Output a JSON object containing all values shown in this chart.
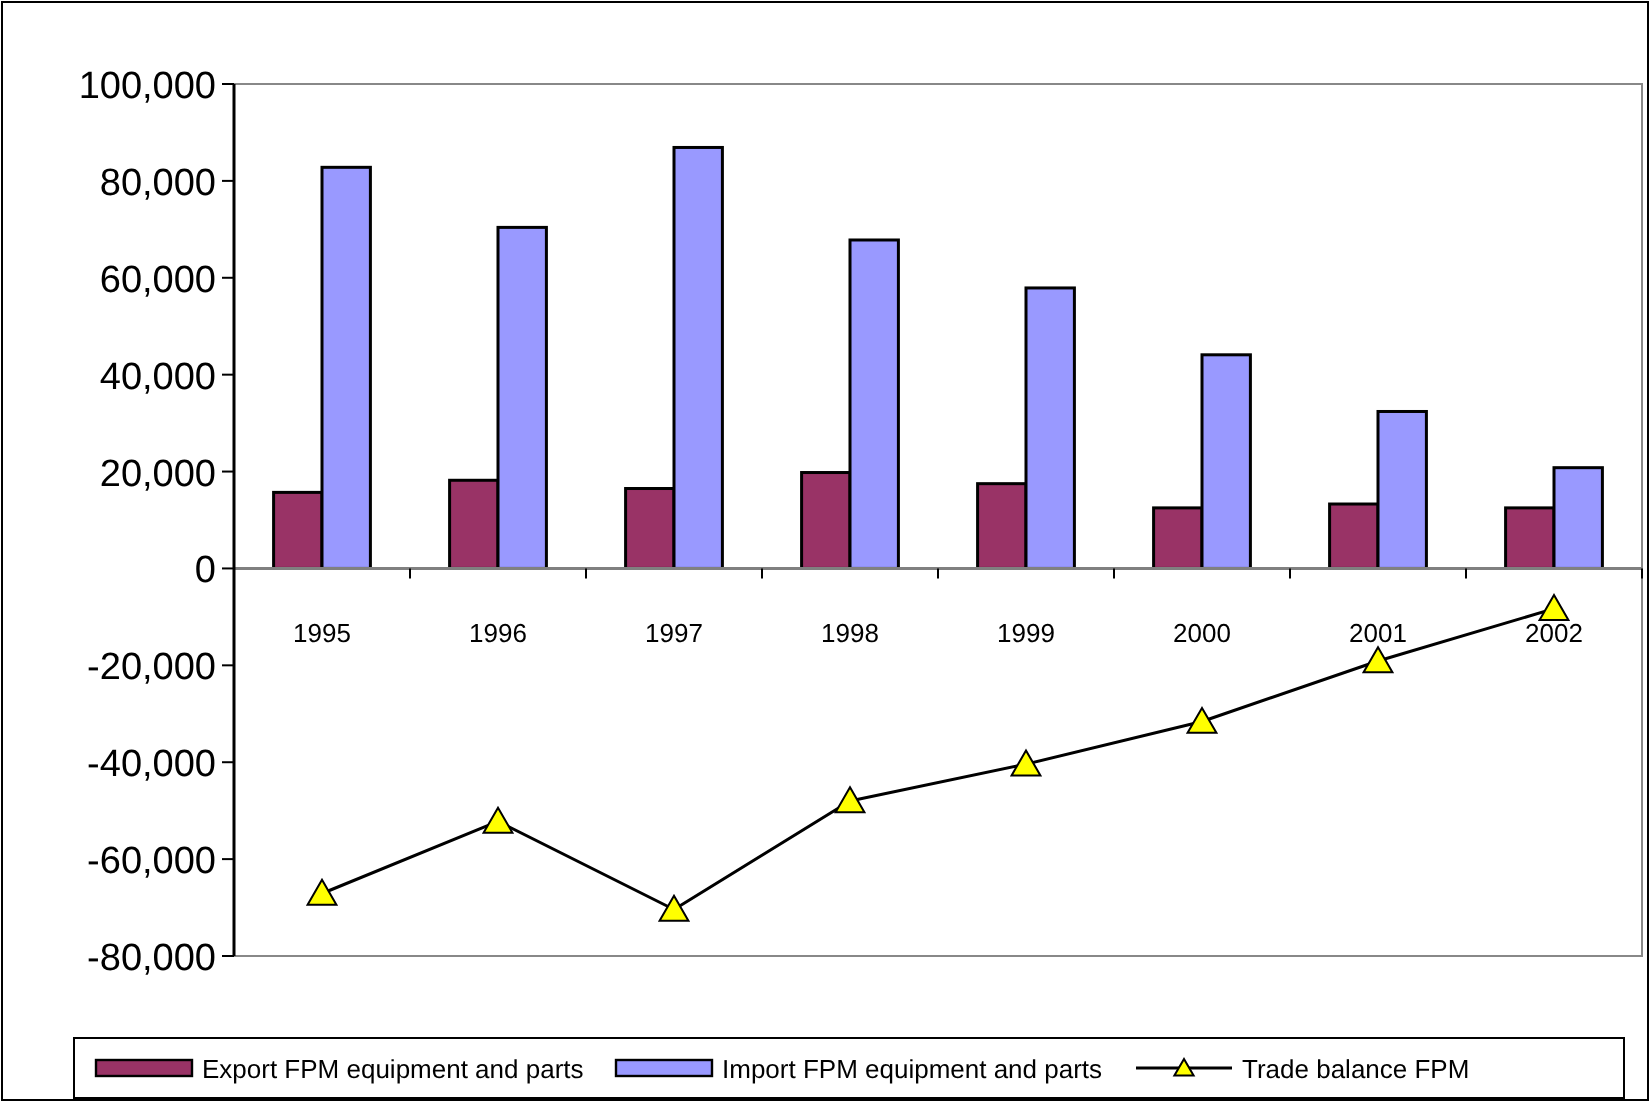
{
  "chart_data": {
    "type": "bar",
    "categories": [
      "1995",
      "1996",
      "1997",
      "1998",
      "1999",
      "2000",
      "2001",
      "2002"
    ],
    "series": [
      {
        "name": "Export FPM equipment and parts",
        "color": "#993366",
        "values": [
          15700,
          18200,
          16500,
          19800,
          17500,
          12500,
          13300,
          12500
        ]
      },
      {
        "name": "Import FPM equipment and parts",
        "color": "#9999ff",
        "values": [
          82800,
          70400,
          86900,
          67800,
          57900,
          44100,
          32400,
          20800
        ]
      },
      {
        "name": "Trade balance FPM",
        "type": "line",
        "color": "#000000",
        "marker": "triangle",
        "values": [
          -67100,
          -52200,
          -70400,
          -48000,
          -40400,
          -31600,
          -19100,
          -8300
        ]
      }
    ],
    "ylim": [
      -80000,
      100000
    ],
    "yticks": [
      {
        "value": -80000,
        "label": "-80,000"
      },
      {
        "value": -60000,
        "label": "-60,000"
      },
      {
        "value": -40000,
        "label": "-40,000"
      },
      {
        "value": -20000,
        "label": "-20,000"
      },
      0,
      {
        "value": 20000,
        "label": "20,000"
      },
      {
        "value": 40000,
        "label": "40,000"
      },
      {
        "value": 60000,
        "label": "60,000"
      },
      {
        "value": 80000,
        "label": "80,000"
      },
      {
        "value": 100000,
        "label": "100,000"
      }
    ],
    "grid": false,
    "legend": "bottom"
  }
}
